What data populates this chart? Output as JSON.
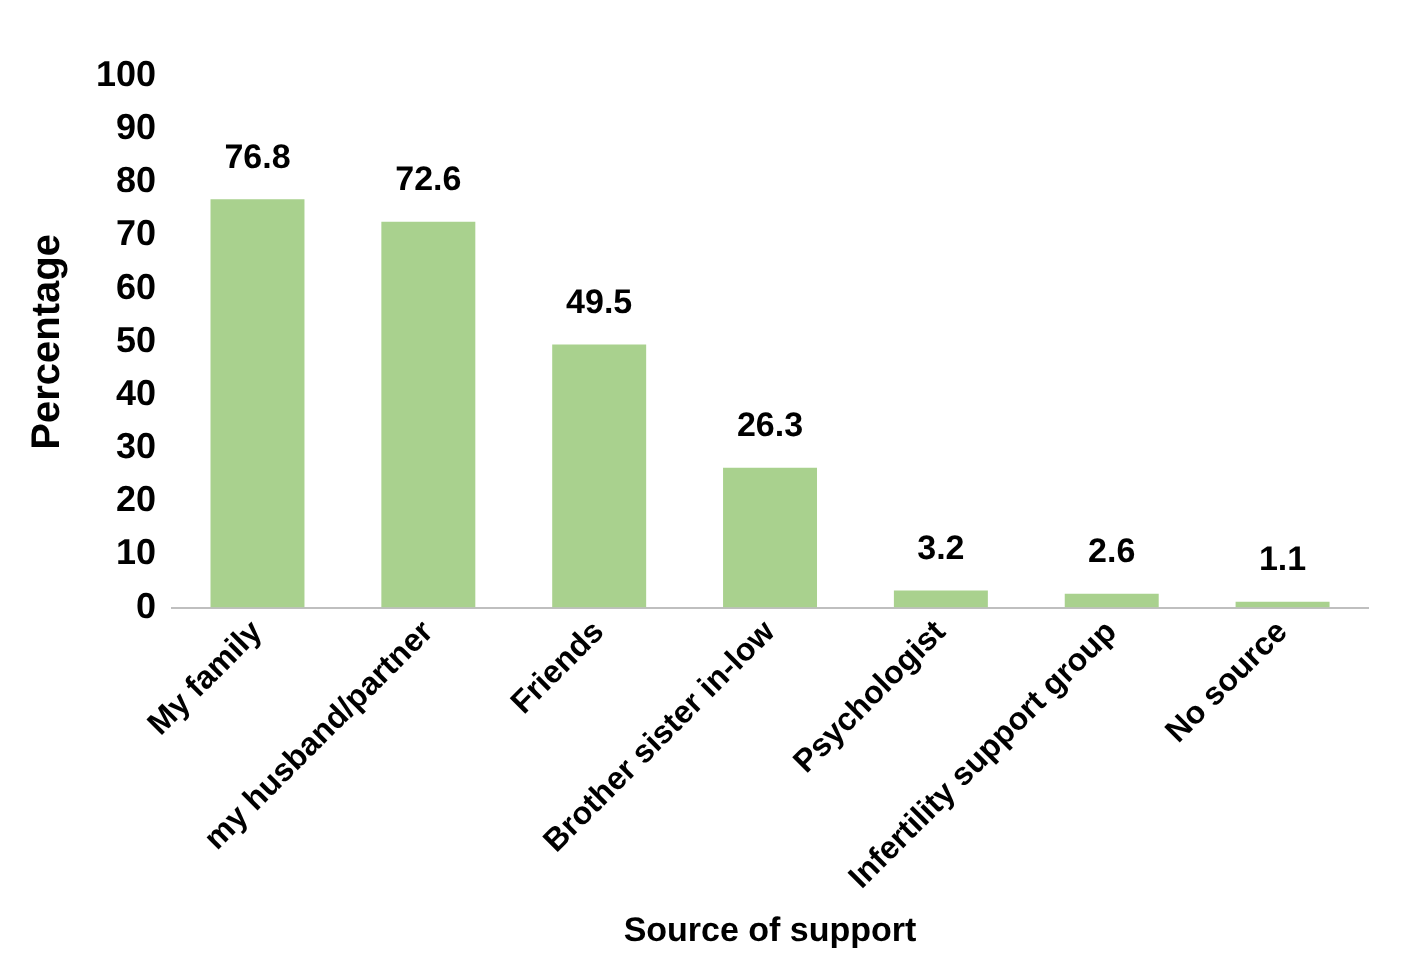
{
  "chart_data": {
    "type": "bar",
    "xlabel": "Source of support",
    "ylabel": "Percentage",
    "categories": [
      "My family",
      "my husband/partner",
      "Friends",
      "Brother sister in-low",
      "Psychologist",
      "Infertility support group",
      "No source"
    ],
    "values": [
      76.8,
      72.6,
      49.5,
      26.3,
      3.2,
      2.6,
      1.1
    ],
    "color": "#a9d18e",
    "ylim": [
      0,
      100
    ],
    "yticks": [
      0,
      10,
      20,
      30,
      40,
      50,
      60,
      70,
      80,
      90,
      100
    ],
    "grid": false,
    "legend": false,
    "data_labels": true
  }
}
